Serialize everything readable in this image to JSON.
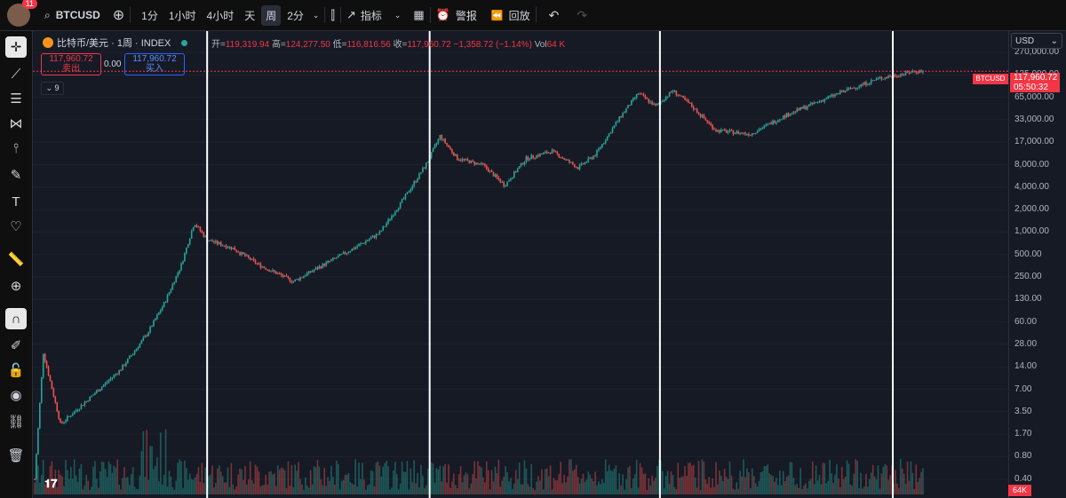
{
  "header": {
    "notif_count": "11",
    "symbol": "BTCUSD",
    "intervals": [
      "1分",
      "1小时",
      "4小时",
      "天",
      "周",
      "2分"
    ],
    "active_interval": "周",
    "indicators_label": "指标",
    "alerts_label": "警报",
    "replay_label": "回放"
  },
  "legend": {
    "title": "比特币/美元 · 1周 · INDEX",
    "open_label": "开=",
    "open": "119,319.94",
    "high_label": "高=",
    "high": "124,277.50",
    "low_label": "低=",
    "low": "116,816.56",
    "close_label": "收=",
    "close": "117,960.72",
    "change": "−1,358.72 (−1.14%)",
    "vol_label": "Vol",
    "vol": "64 K",
    "sell_price": "117,960.72",
    "sell_label": "卖出",
    "buy_price": "117,960.72",
    "buy_label": "买入",
    "spread": "0.00",
    "indicator_count": "9"
  },
  "price_axis": {
    "currency": "USD",
    "current_symbol": "BTCUSD",
    "current_price": "117,960.72",
    "countdown": "05:50:32",
    "volume_tag": "64K",
    "ticks": [
      "270,000.00",
      "135,000.00",
      "65,000.00",
      "33,000.00",
      "17,000.00",
      "8,000.00",
      "4,000.00",
      "2,000.00",
      "1,000.00",
      "500.00",
      "250.00",
      "130.00",
      "60.00",
      "28.00",
      "14.00",
      "7.00",
      "3.50",
      "1.70",
      "0.80",
      "0.40"
    ]
  },
  "chart_data": {
    "type": "candlestick",
    "scale": "log",
    "series_points": [
      [
        0,
        0.4
      ],
      [
        10,
        20
      ],
      [
        30,
        2.2
      ],
      [
        60,
        4.5
      ],
      [
        100,
        12
      ],
      [
        130,
        35
      ],
      [
        150,
        90
      ],
      [
        170,
        300
      ],
      [
        185,
        1100
      ],
      [
        200,
        650
      ],
      [
        230,
        500
      ],
      [
        260,
        300
      ],
      [
        300,
        180
      ],
      [
        330,
        280
      ],
      [
        370,
        500
      ],
      [
        400,
        800
      ],
      [
        430,
        2500
      ],
      [
        455,
        7000
      ],
      [
        470,
        16000
      ],
      [
        490,
        8000
      ],
      [
        520,
        6500
      ],
      [
        545,
        3500
      ],
      [
        570,
        8000
      ],
      [
        600,
        10000
      ],
      [
        630,
        6000
      ],
      [
        650,
        9000
      ],
      [
        680,
        30000
      ],
      [
        700,
        60000
      ],
      [
        720,
        40000
      ],
      [
        740,
        65000
      ],
      [
        760,
        42000
      ],
      [
        790,
        19000
      ],
      [
        830,
        17000
      ],
      [
        870,
        30000
      ],
      [
        900,
        42000
      ],
      [
        940,
        65000
      ],
      [
        980,
        95000
      ],
      [
        1000,
        105000
      ],
      [
        1020,
        118000
      ]
    ],
    "vertical_marker_weeks": [
      200,
      458,
      725,
      995
    ]
  },
  "colors": {
    "up": "#26a69a",
    "down": "#ef5350",
    "bg": "#161a25",
    "marker": "#ffffff"
  }
}
